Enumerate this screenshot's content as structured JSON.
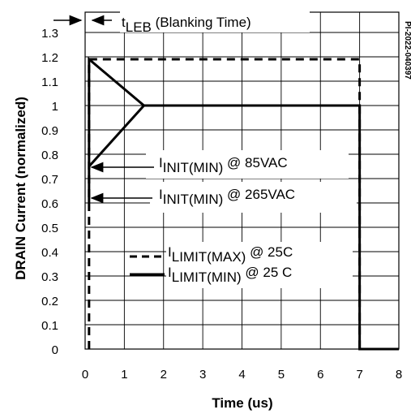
{
  "chart_data": {
    "type": "line",
    "xlabel": "Time (us)",
    "ylabel": "DRAIN Current   (normalized)",
    "xlim": [
      0,
      8
    ],
    "ylim": [
      0,
      1.35
    ],
    "x_ticks": [
      "0",
      "1",
      "2",
      "3",
      "4",
      "5",
      "6",
      "7",
      "8"
    ],
    "y_ticks": [
      "0",
      "0.1",
      "0.2",
      "0.3",
      "0.4",
      "0.5",
      "0.6",
      "0.7",
      "0.8",
      "0.9",
      "1",
      "1.1",
      "1.2",
      "1.3"
    ],
    "grid": true,
    "series": [
      {
        "name": "ILIMIT(MAX) @ 25C",
        "style": "dashed",
        "points": [
          [
            0.1,
            0
          ],
          [
            0.1,
            1.19
          ],
          [
            7.0,
            1.19
          ],
          [
            7.0,
            0
          ]
        ]
      },
      {
        "name": "ILIMIT(MIN) @ 25 C",
        "style": "solid",
        "points": [
          [
            0.1,
            0.6
          ],
          [
            0.1,
            1.19
          ],
          [
            1.5,
            1.0
          ],
          [
            7.0,
            1.0
          ],
          [
            7.0,
            0
          ],
          [
            8.0,
            0
          ]
        ]
      }
    ],
    "annotations": {
      "leb": {
        "main": "t",
        "sub": "LEB",
        "rest": " (Blanking Time)"
      },
      "init85": {
        "main": "I",
        "sub": "INIT(MIN)",
        "rest": " @ 85VAC"
      },
      "init265": {
        "main": "I",
        "sub": "INIT(MIN)",
        "rest": " @ 265VAC"
      },
      "legend_max": {
        "main": "I",
        "sub": "LIMIT(MAX)",
        "rest": " @ 25C"
      },
      "legend_min": {
        "main": "I",
        "sub": "LIMIT(MIN)",
        "rest": " @ 25 C"
      },
      "code": "PI-2022-040397"
    }
  }
}
